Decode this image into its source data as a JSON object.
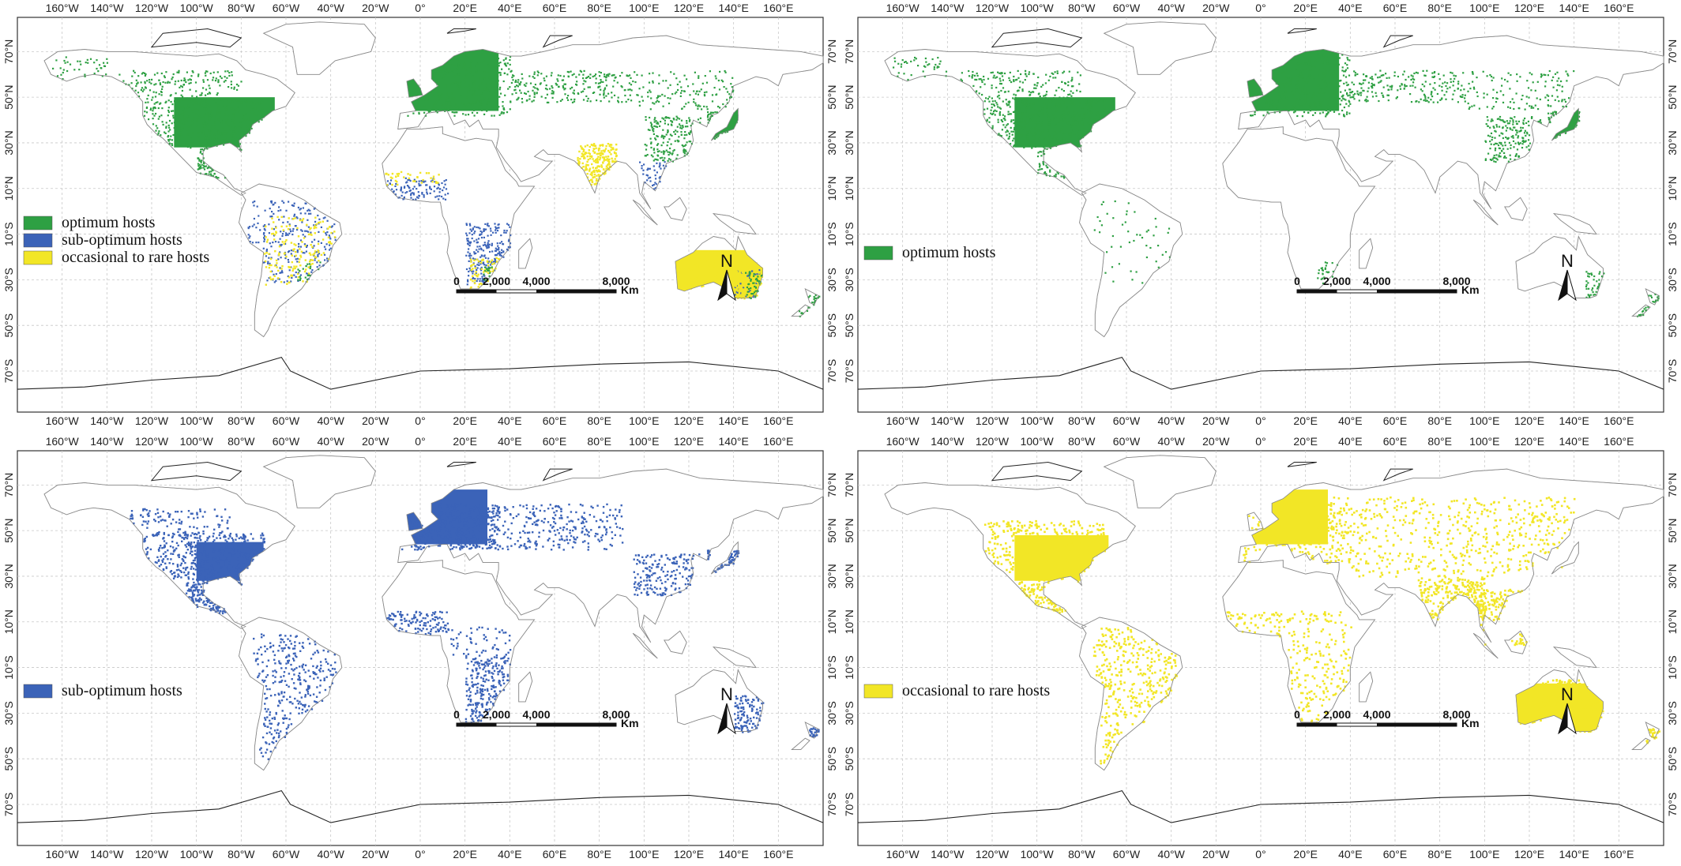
{
  "figure": {
    "lon_ticks": [
      "160°W",
      "140°W",
      "120°W",
      "100°W",
      "80°W",
      "60°W",
      "40°W",
      "20°W",
      "0°",
      "20°E",
      "40°E",
      "60°E",
      "80°E",
      "100°E",
      "120°E",
      "140°E",
      "160°E"
    ],
    "lat_ticks": [
      "70°N",
      "50°N",
      "30°N",
      "10°N",
      "10°S",
      "30°S",
      "50°S",
      "70°S"
    ],
    "scale": {
      "labels": [
        "0",
        "2,000",
        "4,000",
        "8,000"
      ],
      "unit": "Km"
    },
    "north_label": "N"
  },
  "colors": {
    "optimum": "#2ea043",
    "sub_optimum": "#3b63b8",
    "occasional": "#f2e626",
    "land_outline": "#9a9a9a",
    "coast": "#222222"
  },
  "panels": [
    {
      "id": "all-hosts",
      "legend": [
        {
          "label": "optimum hosts",
          "color_key": "optimum"
        },
        {
          "label": "sub-optimum hosts",
          "color_key": "sub_optimum"
        },
        {
          "label": "occasional to rare hosts",
          "color_key": "occasional"
        }
      ]
    },
    {
      "id": "optimum",
      "legend": [
        {
          "label": "optimum hosts",
          "color_key": "optimum"
        }
      ]
    },
    {
      "id": "sub-optimum",
      "legend": [
        {
          "label": "sub-optimum hosts",
          "color_key": "sub_optimum"
        }
      ]
    },
    {
      "id": "occasional",
      "legend": [
        {
          "label": "occasional to rare hosts",
          "color_key": "occasional"
        }
      ]
    }
  ]
}
